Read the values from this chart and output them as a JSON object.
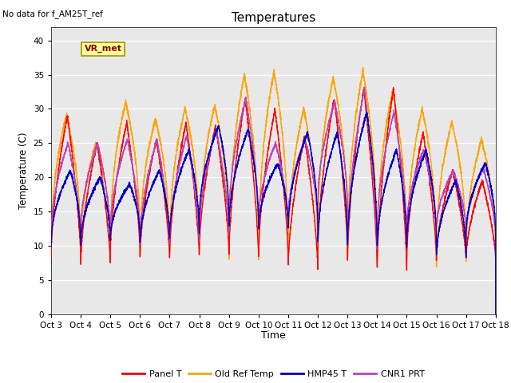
{
  "title": "Temperatures",
  "xlabel": "Time",
  "ylabel": "Temperature (C)",
  "background_color": "#e8e8e8",
  "fig_background": "#ffffff",
  "ylim": [
    0,
    42
  ],
  "yticks": [
    0,
    5,
    10,
    15,
    20,
    25,
    30,
    35,
    40
  ],
  "xtick_labels": [
    "Oct 3",
    "Oct 4",
    "Oct 5",
    "Oct 6",
    "Oct 7",
    "Oct 8",
    "Oct 9",
    "Oct 10",
    "Oct 11",
    "Oct 12",
    "Oct 13",
    "Oct 14",
    "Oct 15",
    "Oct 16",
    "Oct 17",
    "Oct 18"
  ],
  "no_data_text": "No data for f_AM25T_ref",
  "vr_met_label": "VR_met",
  "legend_entries": [
    "Panel T",
    "Old Ref Temp",
    "HMP45 T",
    "CNR1 PRT"
  ],
  "legend_colors": [
    "#ff0000",
    "#ffa500",
    "#0000cc",
    "#bb44bb"
  ],
  "panel_t_color": "#ff0000",
  "old_ref_color": "#ffa500",
  "hmp45_color": "#0000cc",
  "cnr1_color": "#bb44bb",
  "line_width": 1.0,
  "num_days": 15,
  "points_per_day": 288,
  "panel_peaks": [
    29,
    25,
    28,
    25.5,
    28,
    27.5,
    31.5,
    30,
    26,
    31.5,
    33,
    33,
    26.5,
    21,
    19.5
  ],
  "panel_troughs": [
    8,
    7,
    9,
    8,
    8,
    9,
    8,
    8,
    6.5,
    9,
    7,
    6,
    8,
    8,
    8
  ],
  "old_ref_peaks": [
    29,
    25,
    31,
    28.5,
    30,
    30.5,
    35,
    35.5,
    30,
    34.5,
    35.5,
    32.5,
    30,
    28,
    25.5
  ],
  "old_ref_troughs": [
    7,
    7,
    8,
    7,
    7.5,
    7,
    5,
    5,
    5.5,
    9,
    5.5,
    6,
    5.5,
    6.5,
    6
  ],
  "hmp45_peaks": [
    21,
    20,
    19,
    21,
    24,
    27.5,
    27,
    22,
    26.5,
    26.5,
    29.5,
    24,
    24,
    19.5,
    22
  ],
  "hmp45_troughs": [
    10,
    10,
    11,
    10,
    11,
    13.5,
    12,
    12,
    12,
    9.5,
    9,
    9,
    10,
    8,
    11.5
  ],
  "cnr1_peaks": [
    25,
    25,
    25.5,
    25.5,
    26,
    27,
    31.5,
    25,
    25.5,
    31,
    33,
    29.5,
    24,
    21,
    21.5
  ],
  "cnr1_troughs": [
    11.5,
    12,
    12,
    10,
    10,
    11.5,
    14,
    13.5,
    14,
    16.5,
    9,
    12,
    12.5,
    12.5,
    11.5
  ]
}
